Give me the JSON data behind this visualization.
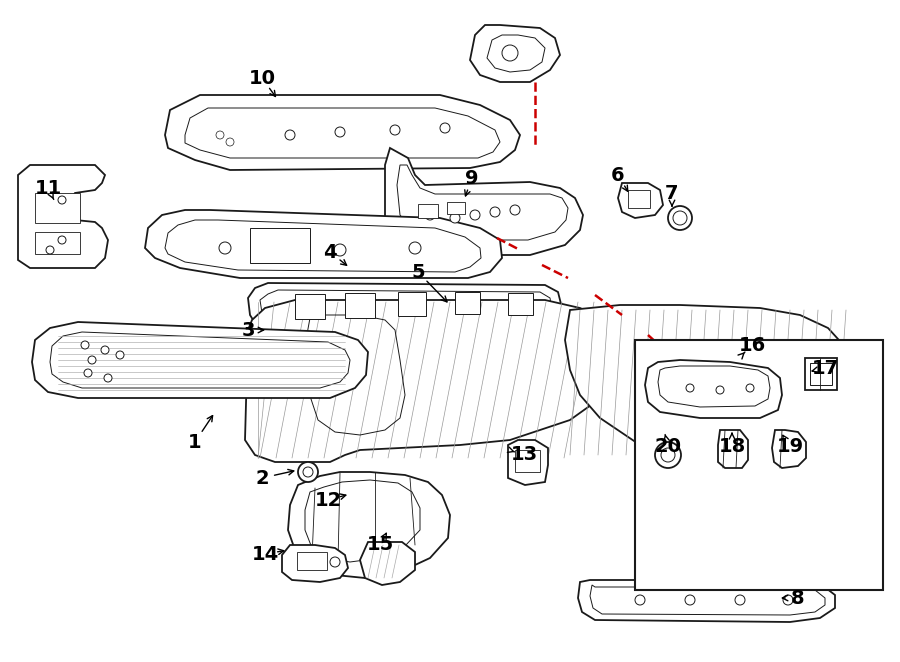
{
  "bg_color": "#ffffff",
  "line_color": "#1a1a1a",
  "red_color": "#cc0000",
  "fig_width": 9.0,
  "fig_height": 6.62,
  "dpi": 100,
  "label_fontsize": 14,
  "parts": {
    "label_positions": {
      "1": [
        195,
        440,
        215,
        408
      ],
      "2": [
        268,
        478,
        300,
        468
      ],
      "3": [
        250,
        328,
        270,
        332
      ],
      "4": [
        328,
        252,
        348,
        268
      ],
      "5": [
        415,
        270,
        445,
        300
      ],
      "6": [
        616,
        175,
        627,
        193
      ],
      "7": [
        672,
        195,
        660,
        210
      ],
      "8": [
        793,
        598,
        775,
        598
      ],
      "9": [
        470,
        178,
        465,
        200
      ],
      "10": [
        263,
        78,
        278,
        100
      ],
      "11": [
        50,
        188,
        55,
        200
      ],
      "12": [
        330,
        500,
        352,
        492
      ],
      "13": [
        525,
        455,
        515,
        450
      ],
      "14": [
        268,
        553,
        290,
        548
      ],
      "15": [
        383,
        545,
        388,
        530
      ],
      "16": [
        755,
        345,
        745,
        350
      ],
      "17": [
        825,
        368,
        808,
        375
      ],
      "18": [
        735,
        445,
        735,
        432
      ],
      "19": [
        790,
        445,
        782,
        432
      ],
      "20": [
        672,
        445,
        665,
        432
      ]
    }
  }
}
